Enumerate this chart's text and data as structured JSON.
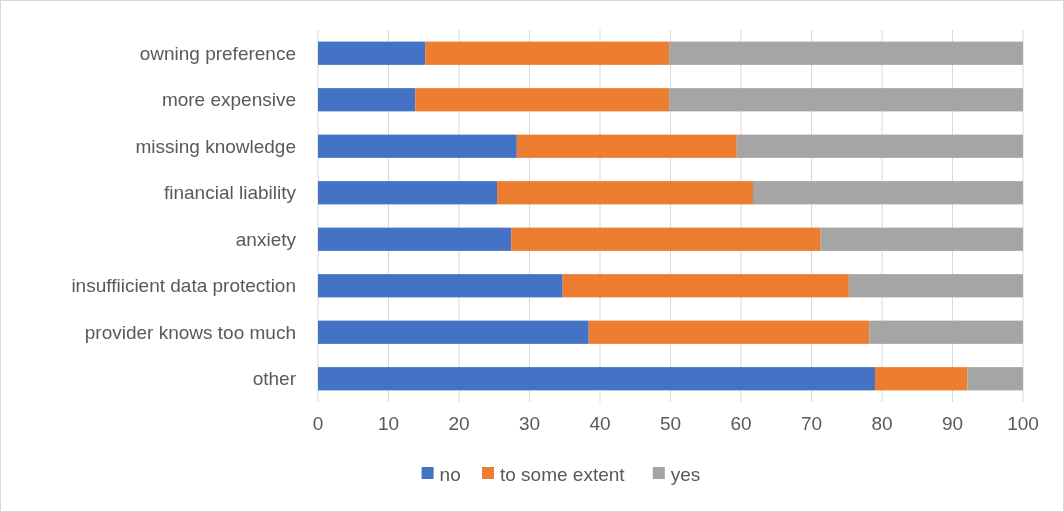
{
  "chart_data": {
    "type": "bar",
    "orientation": "horizontal",
    "stacked": true,
    "categories": [
      "owning preference",
      "more expensive",
      "missing knowledge",
      "financial liability",
      "anxiety",
      "insuffiicient data protection",
      "provider knows too much",
      "other"
    ],
    "series": [
      {
        "name": "no",
        "color": "#4472c4",
        "values": [
          15.2,
          13.8,
          28.2,
          25.4,
          27.4,
          34.7,
          38.4,
          79
        ]
      },
      {
        "name": "to some extent",
        "color": "#ed7d31",
        "values": [
          34.6,
          36,
          31.2,
          36.3,
          43.9,
          40.6,
          39.8,
          13.1
        ]
      },
      {
        "name": "yes",
        "color": "#a5a5a5",
        "values": [
          50.2,
          50.2,
          40.6,
          38.3,
          28.7,
          24.7,
          21.8,
          7.9
        ]
      }
    ],
    "xlim": [
      0,
      100
    ],
    "xticks": [
      0,
      10,
      20,
      30,
      40,
      50,
      60,
      70,
      80,
      90,
      100
    ],
    "grid": "x",
    "legend": "bottom"
  }
}
